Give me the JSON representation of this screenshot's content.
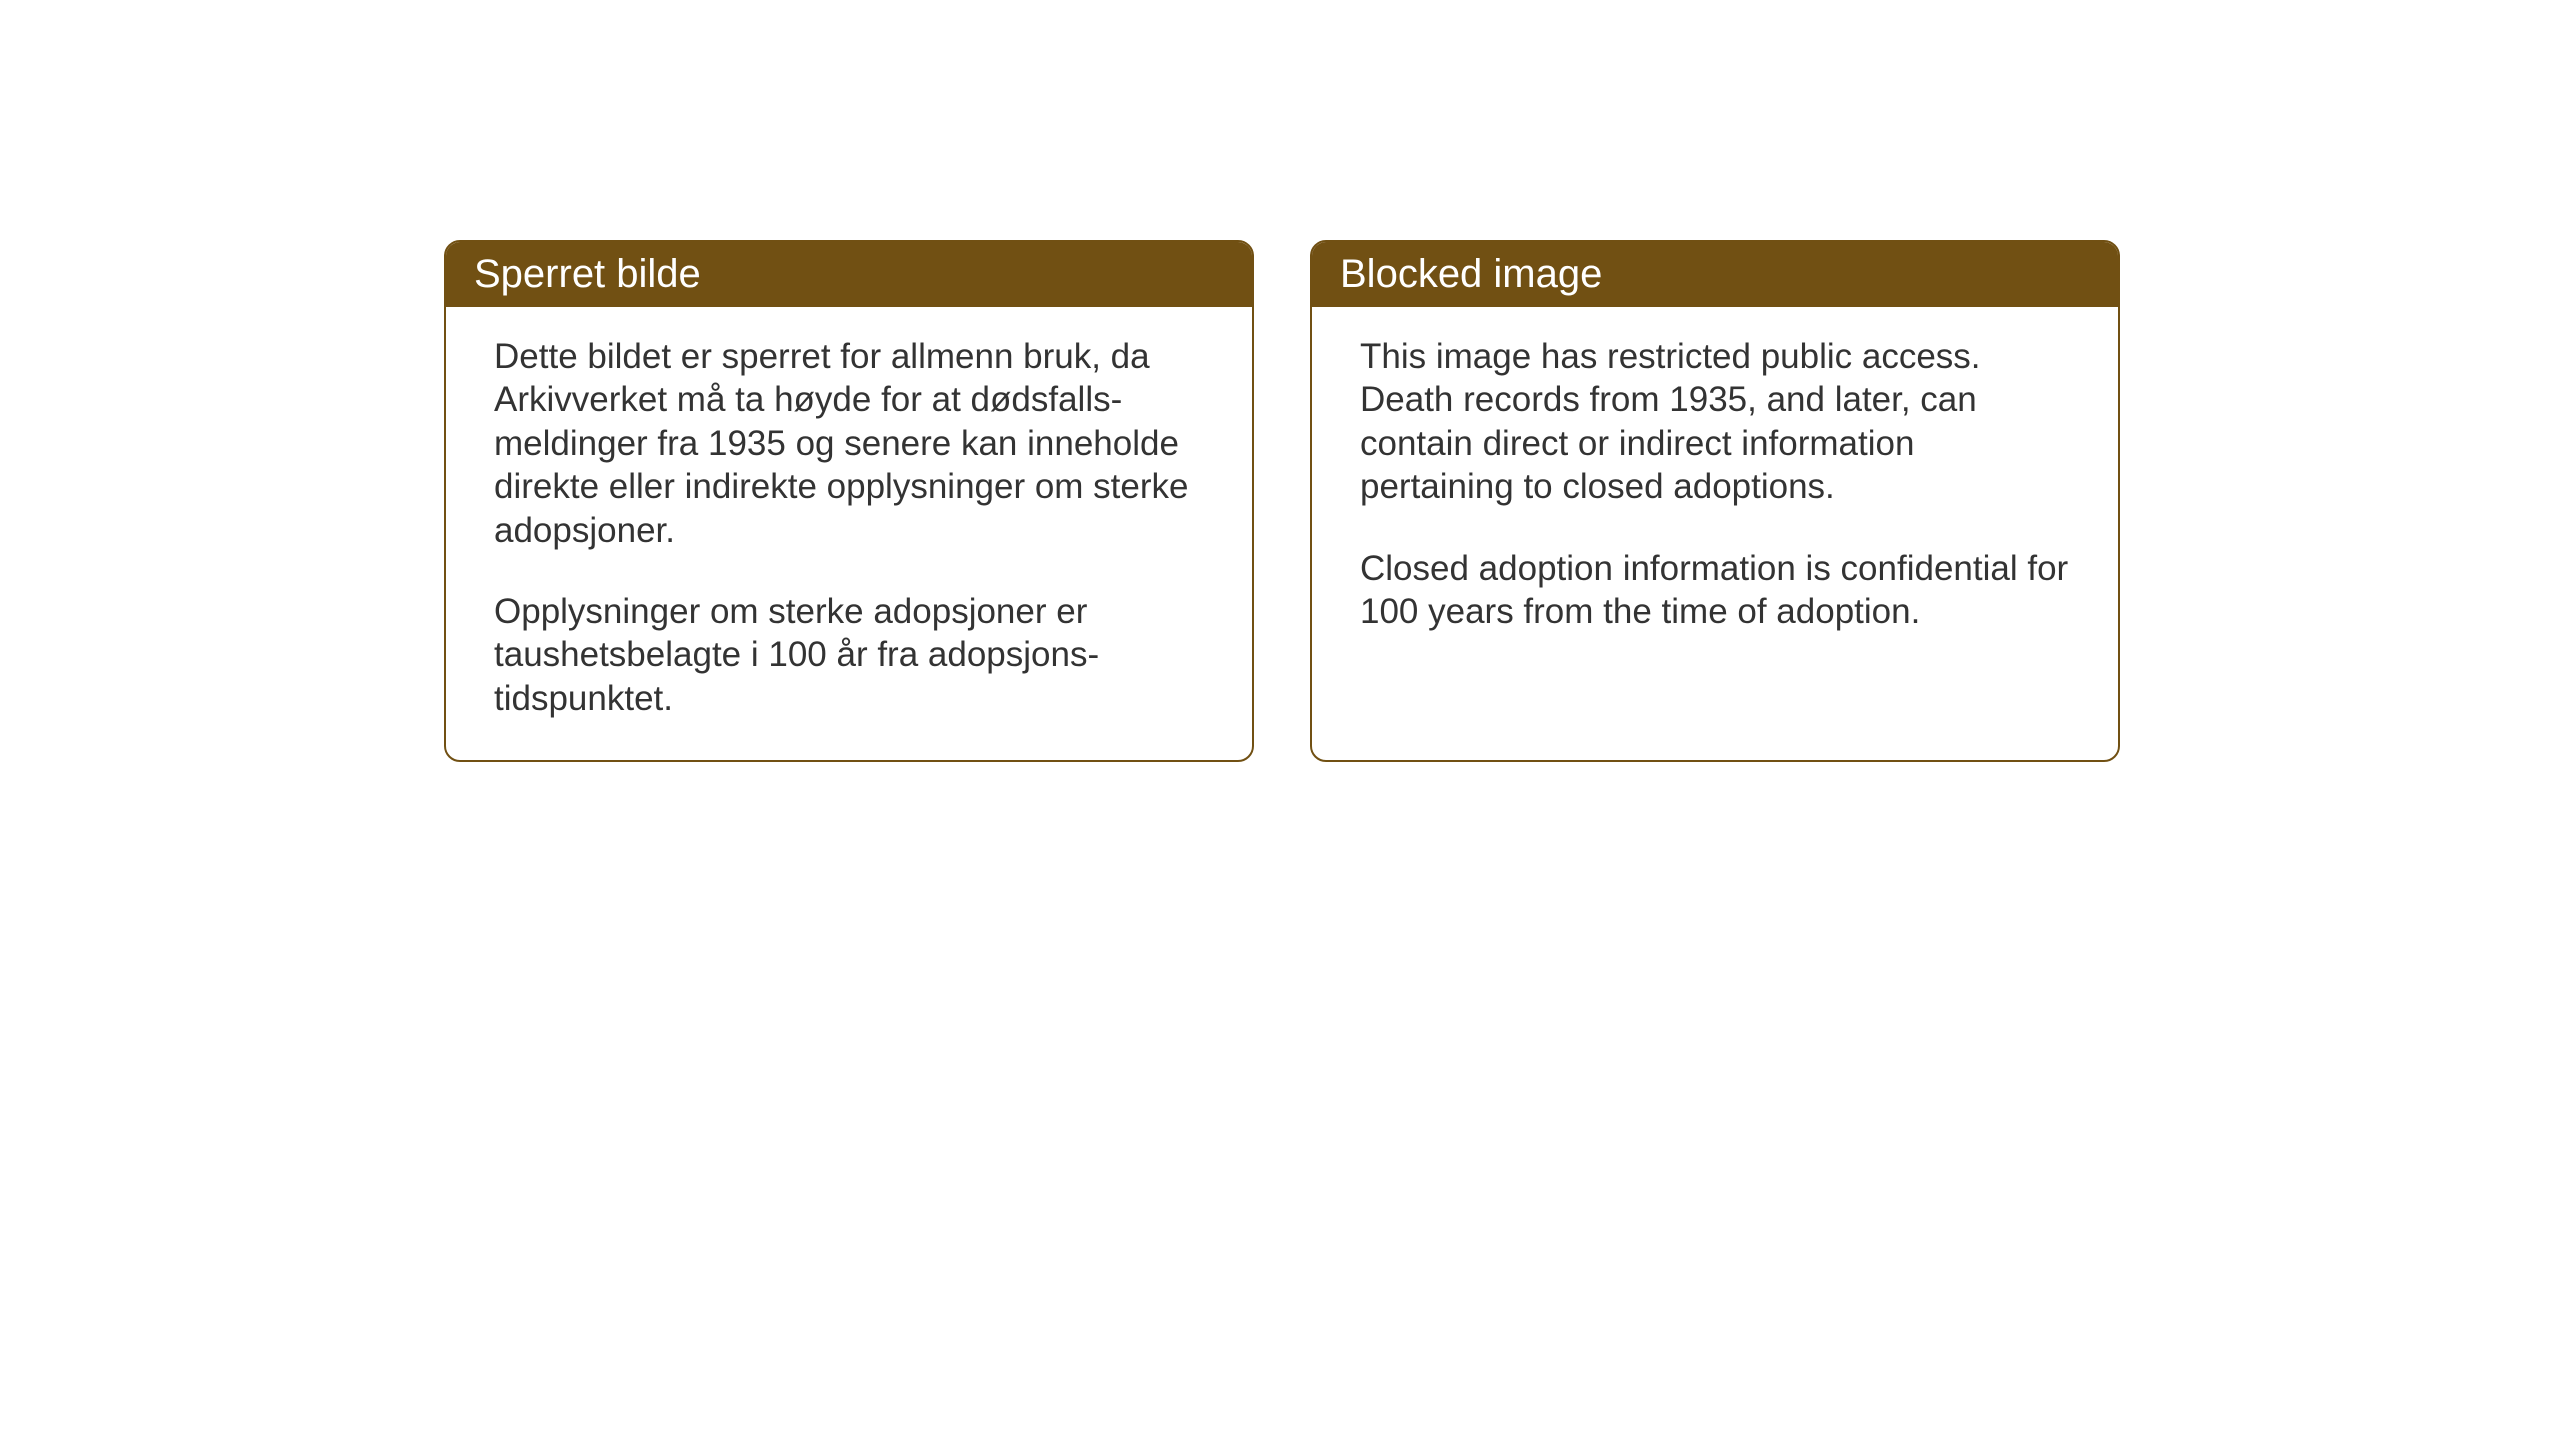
{
  "cards": {
    "norwegian": {
      "title": "Sperret bilde",
      "paragraph1": "Dette bildet er sperret for allmenn bruk, da Arkivverket må ta høyde for at dødsfalls-meldinger fra 1935 og senere kan inneholde direkte eller indirekte opplysninger om sterke adopsjoner.",
      "paragraph2": "Opplysninger om sterke adopsjoner er taushetsbelagte i 100 år fra adopsjons-tidspunktet."
    },
    "english": {
      "title": "Blocked image",
      "paragraph1": "This image has restricted public access. Death records from 1935, and later, can contain direct or indirect information pertaining to closed adoptions.",
      "paragraph2": "Closed adoption information is confidential for 100 years from the time of adoption."
    }
  },
  "styling": {
    "header_background_color": "#715013",
    "header_text_color": "#ffffff",
    "border_color": "#715013",
    "body_text_color": "#333333",
    "card_background_color": "#ffffff",
    "page_background_color": "#ffffff",
    "header_fontsize": 40,
    "body_fontsize": 35,
    "border_radius": 16,
    "border_width": 2
  }
}
